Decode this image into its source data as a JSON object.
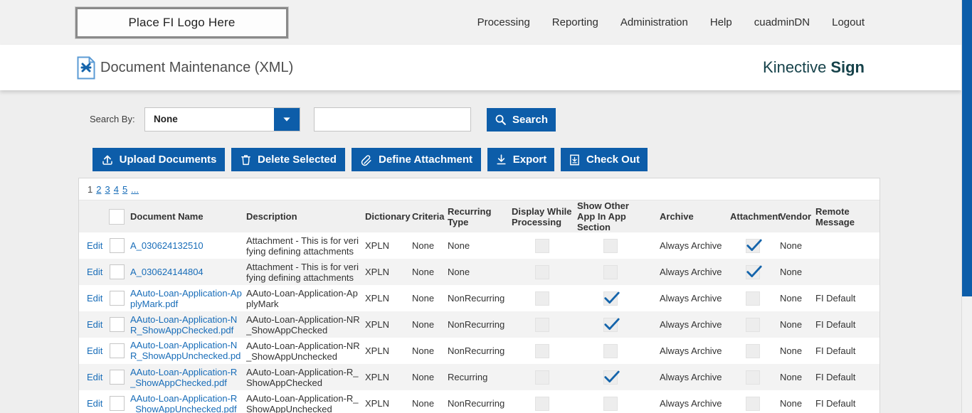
{
  "header": {
    "logo_placeholder": "Place FI Logo Here",
    "nav_items": [
      "Processing",
      "Reporting",
      "Administration",
      "Help",
      "cuadminDN",
      "Logout"
    ]
  },
  "title_bar": {
    "page_title": "Document Maintenance (XML)",
    "brand": {
      "name": "Kinective",
      "product": "Sign"
    }
  },
  "search": {
    "label": "Search By:",
    "field_selected": "None",
    "query_value": "",
    "button": "Search"
  },
  "toolbar": {
    "upload_documents": "Upload Documents",
    "delete_selected": "Delete Selected",
    "define_attachment": "Define Attachment",
    "export": "Export",
    "check_out": "Check Out"
  },
  "pagination": {
    "current_page": "1",
    "pages": [
      "2",
      "3",
      "4",
      "5",
      "..."
    ]
  },
  "table": {
    "edit_label": "Edit",
    "headers": {
      "document_name": "Document Name",
      "description": "Description",
      "dictionary": "Dictionary",
      "criteria": "Criteria",
      "recurring_type": "Recurring Type",
      "display_while_processing": "Display While Processing",
      "show_other_app": "Show Other App In App Section",
      "archive": "Archive",
      "attachment": "Attachment",
      "vendor": "Vendor",
      "remote_message": "Remote Message"
    },
    "rows": [
      {
        "name": "A_030624132510",
        "description": "Attachment - This is for verifying defining attachments",
        "dictionary": "XPLN",
        "criteria": "None",
        "recurring_type": "None",
        "display_while_processing": false,
        "show_other_app": false,
        "archive": "Always Archive",
        "attachment": true,
        "vendor": "None",
        "remote_message": ""
      },
      {
        "name": "A_030624144804",
        "description": "Attachment - This is for verifying defining attachments",
        "dictionary": "XPLN",
        "criteria": "None",
        "recurring_type": "None",
        "display_while_processing": false,
        "show_other_app": false,
        "archive": "Always Archive",
        "attachment": true,
        "vendor": "None",
        "remote_message": ""
      },
      {
        "name": "AAuto-Loan-Application-ApplyMark.pdf",
        "description": "AAuto-Loan-Application-ApplyMark",
        "dictionary": "XPLN",
        "criteria": "None",
        "recurring_type": "NonRecurring",
        "display_while_processing": false,
        "show_other_app": true,
        "archive": "Always Archive",
        "attachment": false,
        "vendor": "None",
        "remote_message": "FI Default"
      },
      {
        "name": "AAuto-Loan-Application-NR_ShowAppChecked.pdf",
        "description": "AAuto-Loan-Application-NR_ShowAppChecked",
        "dictionary": "XPLN",
        "criteria": "None",
        "recurring_type": "NonRecurring",
        "display_while_processing": false,
        "show_other_app": true,
        "archive": "Always Archive",
        "attachment": false,
        "vendor": "None",
        "remote_message": "FI Default"
      },
      {
        "name": "AAuto-Loan-Application-NR_ShowAppUnchecked.pdf",
        "description": "AAuto-Loan-Application-NR_ShowAppUnchecked",
        "dictionary": "XPLN",
        "criteria": "None",
        "recurring_type": "NonRecurring",
        "display_while_processing": false,
        "show_other_app": false,
        "archive": "Always Archive",
        "attachment": false,
        "vendor": "None",
        "remote_message": "FI Default"
      },
      {
        "name": "AAuto-Loan-Application-R_ShowAppChecked.pdf",
        "description": "AAuto-Loan-Application-R_ShowAppChecked",
        "dictionary": "XPLN",
        "criteria": "None",
        "recurring_type": "Recurring",
        "display_while_processing": false,
        "show_other_app": true,
        "archive": "Always Archive",
        "attachment": false,
        "vendor": "None",
        "remote_message": "FI Default"
      },
      {
        "name": "AAuto-Loan-Application-R_ShowAppUnchecked.pdf",
        "description": "AAuto-Loan-Application-R_ShowAppUnchecked",
        "dictionary": "XPLN",
        "criteria": "None",
        "recurring_type": "NonRecurring",
        "display_while_processing": false,
        "show_other_app": false,
        "archive": "Always Archive",
        "attachment": false,
        "vendor": "None",
        "remote_message": "FI Default"
      }
    ]
  },
  "colors": {
    "primary_blue": "#0d5da9",
    "link_blue": "#176cb8",
    "check_blue": "#1464ab",
    "brand_teal": "#16424a",
    "topbar_bg": "#f1f1f1",
    "content_bg": "#eeeeee",
    "alt_row_bg": "#f3f3f3"
  },
  "icons": {
    "title": "xml-document-icon",
    "dropdown": "chevron-down-icon",
    "search": "search-icon",
    "upload": "upload-icon",
    "delete": "trash-icon",
    "define_attachment": "paperclip-icon",
    "export": "download-icon",
    "check_out": "check-out-document-icon",
    "checked": "check-icon"
  }
}
